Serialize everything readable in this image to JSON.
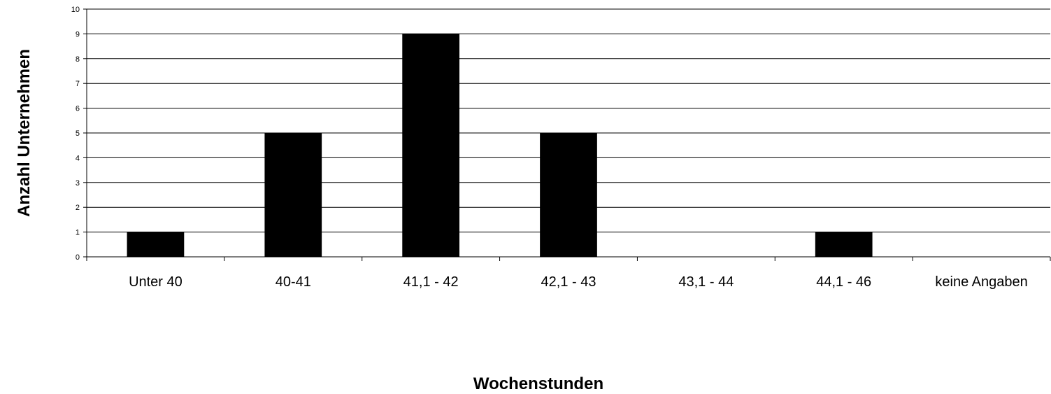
{
  "chart_data": {
    "type": "bar",
    "categories": [
      "Unter 40",
      "40-41",
      "41,1 - 42",
      "42,1 - 43",
      "43,1 - 44",
      "44,1 - 46",
      "keine Angaben"
    ],
    "values": [
      1,
      5,
      9,
      5,
      0,
      1,
      0
    ],
    "xlabel": "Wochenstunden",
    "ylabel": "Anzahl Unternehmen",
    "ylim": [
      0,
      10
    ],
    "yticks": [
      "0",
      "1",
      "2",
      "3",
      "4",
      "5",
      "6",
      "7",
      "8",
      "9",
      "10"
    ],
    "grid": true,
    "bar_color": "#000000",
    "grid_color": "#000000"
  }
}
